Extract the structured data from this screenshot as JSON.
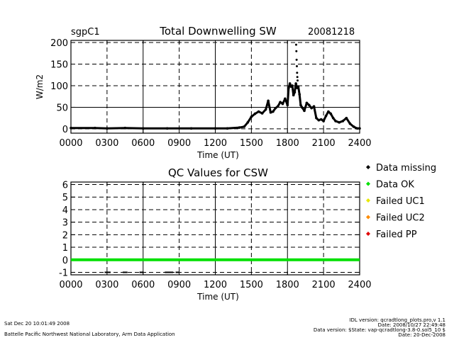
{
  "header": {
    "site": "sgpC1",
    "date": "20081218"
  },
  "legend": [
    {
      "label": "Data missing",
      "color": "#000000"
    },
    {
      "label": "Data OK",
      "color": "#00e000"
    },
    {
      "label": "Failed UC1",
      "color": "#e8e800"
    },
    {
      "label": "Failed UC2",
      "color": "#ff8c00"
    },
    {
      "label": "Failed PP",
      "color": "#e00000"
    }
  ],
  "footer": {
    "timestamp": "Sat Dec 20 10:01:49 2008",
    "org": "Battelle Pacific Northwest National Laboratory, Arm Data Application",
    "idl_version": "IDL version: qcradtlong_plots.pro,v 1.1",
    "idl_date": "Date: 2008/10/27 22:49:48",
    "data_version": "Data version: $State: vap-qcradtlong-3.8-0.sol5_10 $",
    "data_date": "Date: 20-Dec-2008"
  },
  "chart_data": [
    {
      "type": "line",
      "title": "Total Downwelling SW",
      "xlabel": "Time (UT)",
      "ylabel": "W/m2",
      "xlim": [
        0,
        2400
      ],
      "ylim": [
        -10,
        205
      ],
      "xticks": [
        0,
        300,
        600,
        900,
        1200,
        1500,
        1800,
        2100,
        2400
      ],
      "xtick_labels": [
        "0000",
        "0300",
        "0600",
        "0900",
        "1200",
        "1500",
        "1800",
        "2100",
        "2400"
      ],
      "yticks": [
        0,
        50,
        100,
        150,
        200
      ],
      "ytick_labels": [
        "0",
        "50",
        "100",
        "150",
        "200"
      ],
      "grid": "dashed",
      "series": [
        {
          "marker": "+",
          "color": "#000000",
          "x": [
            0,
            200,
            300,
            450,
            600,
            800,
            1000,
            1200,
            1300,
            1400,
            1440,
            1470,
            1500,
            1530,
            1560,
            1590,
            1620,
            1640,
            1660,
            1680,
            1700,
            1720,
            1740,
            1760,
            1780,
            1800,
            1810,
            1820,
            1830,
            1840,
            1850,
            1860,
            1870,
            1880,
            1890,
            1900,
            1910,
            1920,
            1940,
            1960,
            1980,
            2000,
            2020,
            2040,
            2060,
            2080,
            2100,
            2120,
            2140,
            2160,
            2180,
            2200,
            2230,
            2260,
            2290,
            2320,
            2350,
            2380,
            2400
          ],
          "y": [
            2,
            2,
            1,
            2,
            1,
            1,
            1,
            1,
            1,
            3,
            5,
            15,
            28,
            35,
            40,
            36,
            45,
            65,
            38,
            40,
            48,
            52,
            62,
            58,
            70,
            55,
            95,
            105,
            98,
            100,
            78,
            85,
            105,
            95,
            98,
            80,
            55,
            50,
            42,
            60,
            55,
            48,
            52,
            25,
            20,
            22,
            18,
            30,
            40,
            35,
            25,
            18,
            15,
            18,
            25,
            12,
            5,
            1,
            1
          ]
        },
        {
          "marker": ".",
          "color": "#000000",
          "x": [
            1872,
            1874,
            1876,
            1878,
            1880,
            1882,
            1884
          ],
          "y": [
            195,
            180,
            160,
            145,
            130,
            120,
            112
          ]
        }
      ]
    },
    {
      "type": "scatter",
      "title": "QC Values for CSW",
      "xlabel": "Time (UT)",
      "ylabel": "",
      "xlim": [
        0,
        2400
      ],
      "ylim": [
        -1.2,
        6.2
      ],
      "xticks": [
        0,
        300,
        600,
        900,
        1200,
        1500,
        1800,
        2100,
        2400
      ],
      "xtick_labels": [
        "0000",
        "0300",
        "0600",
        "0900",
        "1200",
        "1500",
        "1800",
        "2100",
        "2400"
      ],
      "yticks": [
        -1,
        0,
        1,
        2,
        3,
        4,
        5,
        6
      ],
      "ytick_labels": [
        "-1",
        "0",
        "1",
        "2",
        "3",
        "4",
        "5",
        "6"
      ],
      "grid": "dashed",
      "series": [
        {
          "name": "Data OK",
          "color": "#00e000",
          "y": 0,
          "x_ranges": [
            [
              0,
              2400
            ]
          ]
        },
        {
          "name": "Data missing",
          "color": "#000000",
          "y": -1,
          "x_ranges": [
            [
              280,
              330
            ],
            [
              430,
              470
            ],
            [
              570,
              600
            ],
            [
              780,
              850
            ],
            [
              870,
              900
            ]
          ]
        }
      ]
    }
  ]
}
